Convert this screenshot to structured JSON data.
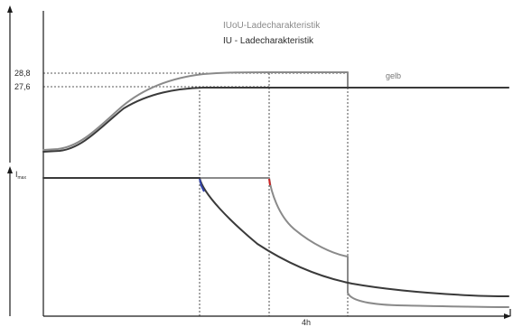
{
  "chart_data": {
    "type": "line",
    "legend": [
      {
        "id": "iuou",
        "label_main": "IUoU-Ladecharakteristik",
        "color": "#8a8a8a"
      },
      {
        "id": "iu",
        "label_main": "IU - Ladecharakteristik",
        "color": "#3a3a3a"
      }
    ],
    "voltage_panel": {
      "yticks": [
        "28,8",
        "27,6"
      ],
      "annotation": "gelb"
    },
    "current_panel": {
      "ylabel": "I",
      "ylabel_sub": "max"
    },
    "xaxis": {
      "tick_label": "4h"
    },
    "colors": {
      "iuou": "#8a8a8a",
      "iu": "#3a3a3a",
      "axis": "#1a1a1a",
      "marker_blue": "#3344aa",
      "marker_red": "#cc2222"
    }
  }
}
